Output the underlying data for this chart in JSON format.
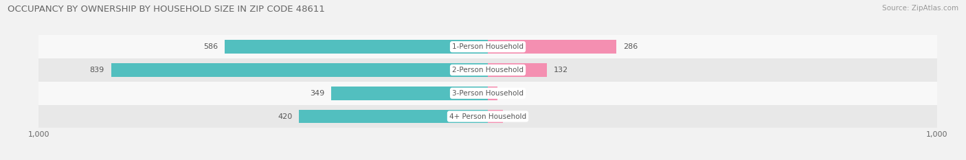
{
  "title": "OCCUPANCY BY OWNERSHIP BY HOUSEHOLD SIZE IN ZIP CODE 48611",
  "source": "Source: ZipAtlas.com",
  "categories": [
    "4+ Person Household",
    "3-Person Household",
    "2-Person Household",
    "1-Person Household"
  ],
  "owner_values": [
    420,
    349,
    839,
    586
  ],
  "renter_values": [
    34,
    21,
    132,
    286
  ],
  "owner_color": "#52bfbf",
  "renter_color": "#f48fb1",
  "axis_max": 1000,
  "background_color": "#f2f2f2",
  "title_fontsize": 9.5,
  "label_fontsize": 8.0,
  "tick_fontsize": 8.0,
  "legend_fontsize": 8.0,
  "source_fontsize": 7.5,
  "bar_height": 0.58,
  "row_bg_colors": [
    "#e8e8e8",
    "#f8f8f8",
    "#e8e8e8",
    "#f8f8f8"
  ]
}
